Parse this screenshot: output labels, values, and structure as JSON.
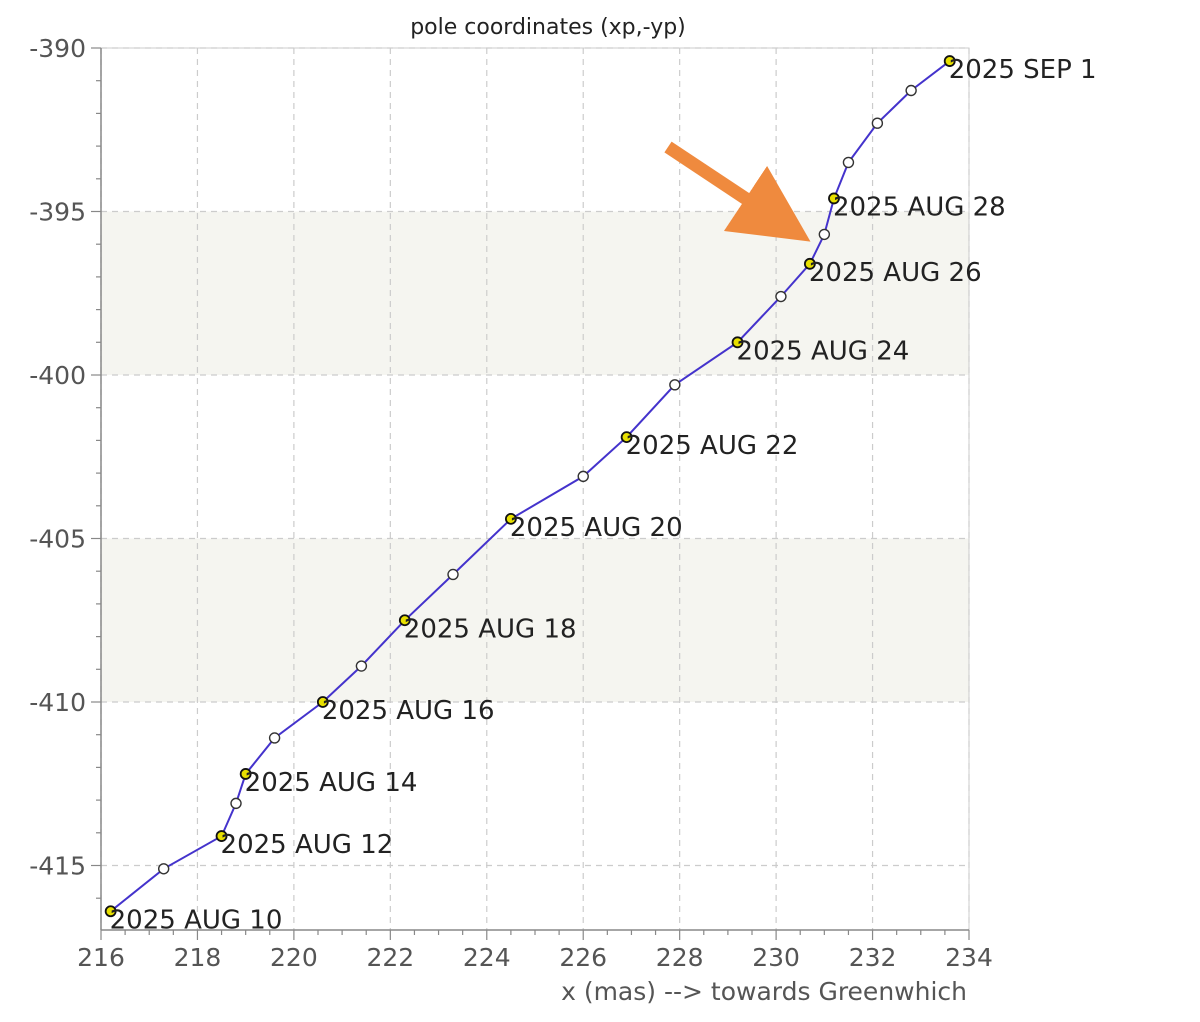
{
  "chart_data": {
    "type": "line",
    "title": "pole coordinates (xp,-yp)",
    "xlabel": "x (mas) --> towards Greenwhich",
    "ylabel": "",
    "xlim": [
      216,
      234
    ],
    "ylim": [
      -417,
      -389.5
    ],
    "x_ticks": [
      216,
      218,
      220,
      222,
      224,
      226,
      228,
      230,
      232,
      234
    ],
    "y_ticks": [
      -390,
      -395,
      -400,
      -405,
      -410,
      -415
    ],
    "grid": true,
    "shaded_bands": [
      [
        -410,
        -405
      ],
      [
        -400,
        -395
      ]
    ],
    "series": [
      {
        "color": "#4433cc",
        "points": [
          {
            "x": 216.2,
            "y": -416.4,
            "label": "2025 AUG 10"
          },
          {
            "x": 217.3,
            "y": -415.1
          },
          {
            "x": 218.5,
            "y": -414.1,
            "label": "2025 AUG 12"
          },
          {
            "x": 218.8,
            "y": -413.1
          },
          {
            "x": 219.0,
            "y": -412.2,
            "label": "2025 AUG 14"
          },
          {
            "x": 219.6,
            "y": -411.1
          },
          {
            "x": 220.6,
            "y": -410.0,
            "label": "2025 AUG 16"
          },
          {
            "x": 221.4,
            "y": -408.9
          },
          {
            "x": 222.3,
            "y": -407.5,
            "label": "2025 AUG 18"
          },
          {
            "x": 223.3,
            "y": -406.1
          },
          {
            "x": 224.5,
            "y": -404.4,
            "label": "2025 AUG 20"
          },
          {
            "x": 226.0,
            "y": -403.1
          },
          {
            "x": 226.9,
            "y": -401.9,
            "label": "2025 AUG 22"
          },
          {
            "x": 227.9,
            "y": -400.3
          },
          {
            "x": 229.2,
            "y": -399.0,
            "label": "2025 AUG 24"
          },
          {
            "x": 230.1,
            "y": -397.6
          },
          {
            "x": 230.7,
            "y": -396.6,
            "label": "2025 AUG 26"
          },
          {
            "x": 231.0,
            "y": -395.7
          },
          {
            "x": 231.2,
            "y": -394.6,
            "label": "2025 AUG 28"
          },
          {
            "x": 231.5,
            "y": -393.5
          },
          {
            "x": 232.1,
            "y": -392.3
          },
          {
            "x": 232.8,
            "y": -391.3
          },
          {
            "x": 233.6,
            "y": -390.4,
            "label": "2025 SEP 1"
          }
        ]
      }
    ],
    "annotation_arrow": {
      "color": "#ef8a3e"
    },
    "colors": {
      "line": "#4433cc",
      "labeled_marker_fill": "#e8e000",
      "marker_fill": "#ffffff",
      "band": "#f5f5f0",
      "grid": "#cccccc"
    }
  }
}
